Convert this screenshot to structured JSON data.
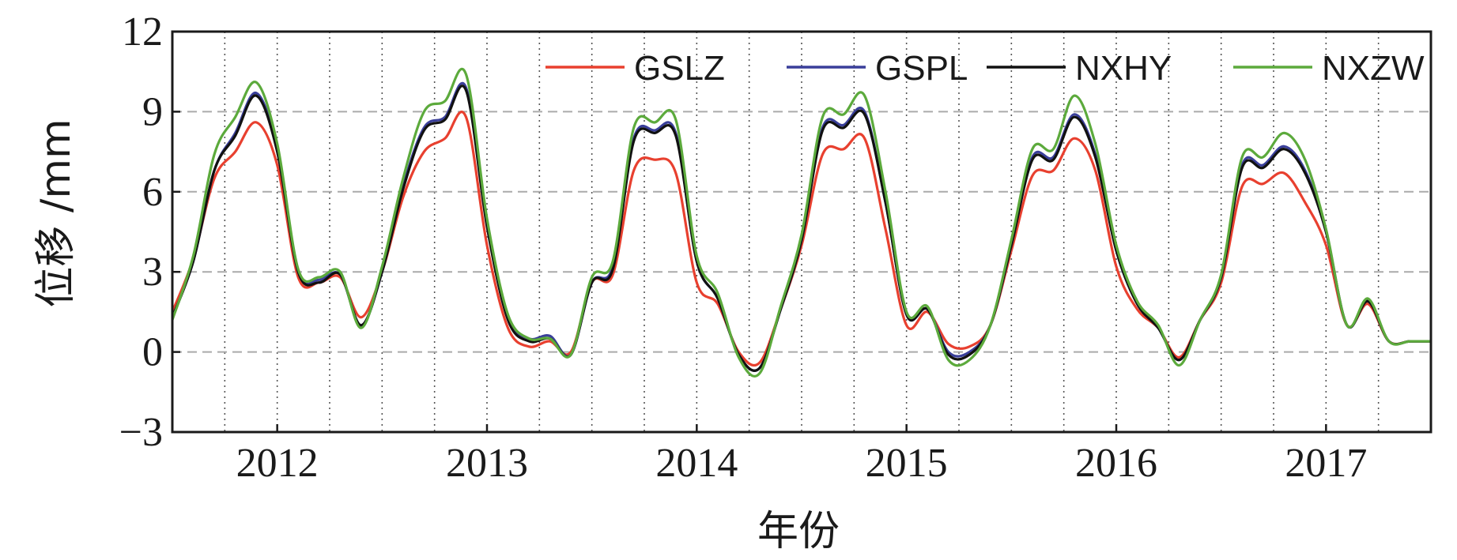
{
  "chart_data": {
    "type": "line",
    "title": "",
    "xlabel": "年份",
    "ylabel": "位移 /mm",
    "xlim": [
      2011.5,
      2017.5
    ],
    "ylim": [
      -3,
      12
    ],
    "y_ticks": [
      -3,
      0,
      3,
      6,
      9,
      12
    ],
    "y_tick_labels": [
      "−3",
      "0",
      "3",
      "6",
      "9",
      "12"
    ],
    "x_tick_labels": [
      {
        "x": 2012,
        "label": "2012"
      },
      {
        "x": 2013,
        "label": "2013"
      },
      {
        "x": 2014,
        "label": "2014"
      },
      {
        "x": 2015,
        "label": "2015"
      },
      {
        "x": 2016,
        "label": "2016"
      },
      {
        "x": 2017,
        "label": "2017"
      }
    ],
    "grid": true,
    "legend_position": "top-right",
    "x": [
      2011.5,
      2011.6,
      2011.7,
      2011.8,
      2011.9,
      2012.0,
      2012.1,
      2012.2,
      2012.3,
      2012.4,
      2012.5,
      2012.6,
      2012.7,
      2012.8,
      2012.9,
      2013.0,
      2013.1,
      2013.2,
      2013.3,
      2013.4,
      2013.5,
      2013.6,
      2013.7,
      2013.8,
      2013.9,
      2014.0,
      2014.1,
      2014.2,
      2014.3,
      2014.4,
      2014.5,
      2014.6,
      2014.7,
      2014.8,
      2014.9,
      2015.0,
      2015.1,
      2015.2,
      2015.3,
      2015.4,
      2015.5,
      2015.6,
      2015.7,
      2015.8,
      2015.9,
      2016.0,
      2016.1,
      2016.2,
      2016.3,
      2016.4,
      2016.5,
      2016.6,
      2016.7,
      2016.8,
      2016.9,
      2017.0,
      2017.1,
      2017.2,
      2017.3,
      2017.4,
      2017.5
    ],
    "series": [
      {
        "name": "GSLZ",
        "color": "#e8402f",
        "values": [
          1.5,
          3.5,
          6.5,
          7.5,
          8.6,
          7.0,
          2.8,
          2.6,
          2.8,
          1.3,
          3.0,
          5.8,
          7.5,
          8.0,
          8.8,
          4.0,
          0.9,
          0.2,
          0.4,
          0.0,
          2.6,
          2.9,
          6.8,
          7.2,
          6.7,
          2.6,
          1.8,
          0.0,
          -0.4,
          1.6,
          4.0,
          7.4,
          7.6,
          8.0,
          4.6,
          1.0,
          1.5,
          0.3,
          0.2,
          1.0,
          3.8,
          6.6,
          6.8,
          8.0,
          6.8,
          3.2,
          1.6,
          0.9,
          -0.2,
          1.2,
          2.6,
          6.2,
          6.3,
          6.7,
          5.6,
          4.0,
          1.0,
          1.8,
          0.4,
          0.4,
          0.4
        ]
      },
      {
        "name": "GSPL",
        "color": "#3a3f9a",
        "values": [
          1.3,
          3.4,
          6.8,
          8.2,
          9.7,
          7.6,
          3.0,
          2.7,
          2.9,
          1.0,
          3.0,
          6.2,
          8.4,
          8.8,
          9.9,
          4.8,
          1.3,
          0.5,
          0.6,
          -0.1,
          2.6,
          3.2,
          8.0,
          8.3,
          8.2,
          3.4,
          2.0,
          -0.1,
          -0.6,
          1.6,
          4.2,
          8.4,
          8.5,
          9.0,
          5.6,
          1.4,
          1.6,
          0.0,
          0.0,
          1.0,
          4.0,
          7.3,
          7.3,
          8.9,
          7.4,
          3.8,
          1.8,
          0.9,
          -0.3,
          1.2,
          2.8,
          7.0,
          7.0,
          7.7,
          6.8,
          4.5,
          1.0,
          1.9,
          0.4,
          0.4,
          0.4
        ]
      },
      {
        "name": "NXHY",
        "color": "#111111",
        "values": [
          1.3,
          3.4,
          6.8,
          8.1,
          9.6,
          7.5,
          3.0,
          2.6,
          2.9,
          1.0,
          3.0,
          6.1,
          8.3,
          8.7,
          9.8,
          4.7,
          1.2,
          0.4,
          0.5,
          -0.1,
          2.6,
          3.1,
          7.9,
          8.2,
          8.1,
          3.4,
          2.0,
          -0.1,
          -0.6,
          1.6,
          4.2,
          8.3,
          8.4,
          8.9,
          5.6,
          1.4,
          1.6,
          -0.1,
          -0.1,
          1.0,
          4.0,
          7.2,
          7.2,
          8.8,
          7.3,
          3.8,
          1.8,
          0.9,
          -0.3,
          1.2,
          2.8,
          6.9,
          6.9,
          7.6,
          6.7,
          4.5,
          1.0,
          1.9,
          0.4,
          0.4,
          0.4
        ]
      },
      {
        "name": "NXZW",
        "color": "#5caa3c",
        "values": [
          1.2,
          3.6,
          7.4,
          8.8,
          10.1,
          7.8,
          3.1,
          2.8,
          3.0,
          0.9,
          3.2,
          6.5,
          9.0,
          9.4,
          10.4,
          5.0,
          1.4,
          0.5,
          0.5,
          -0.1,
          2.8,
          3.4,
          8.4,
          8.6,
          8.7,
          3.6,
          2.2,
          -0.2,
          -0.8,
          1.7,
          4.4,
          8.8,
          8.9,
          9.6,
          6.0,
          1.5,
          1.7,
          -0.3,
          -0.3,
          1.0,
          4.2,
          7.6,
          7.6,
          9.6,
          7.8,
          4.0,
          1.9,
          1.0,
          -0.5,
          1.2,
          2.9,
          7.3,
          7.3,
          8.2,
          7.2,
          4.6,
          1.0,
          2.0,
          0.4,
          0.4,
          0.4
        ]
      }
    ]
  }
}
